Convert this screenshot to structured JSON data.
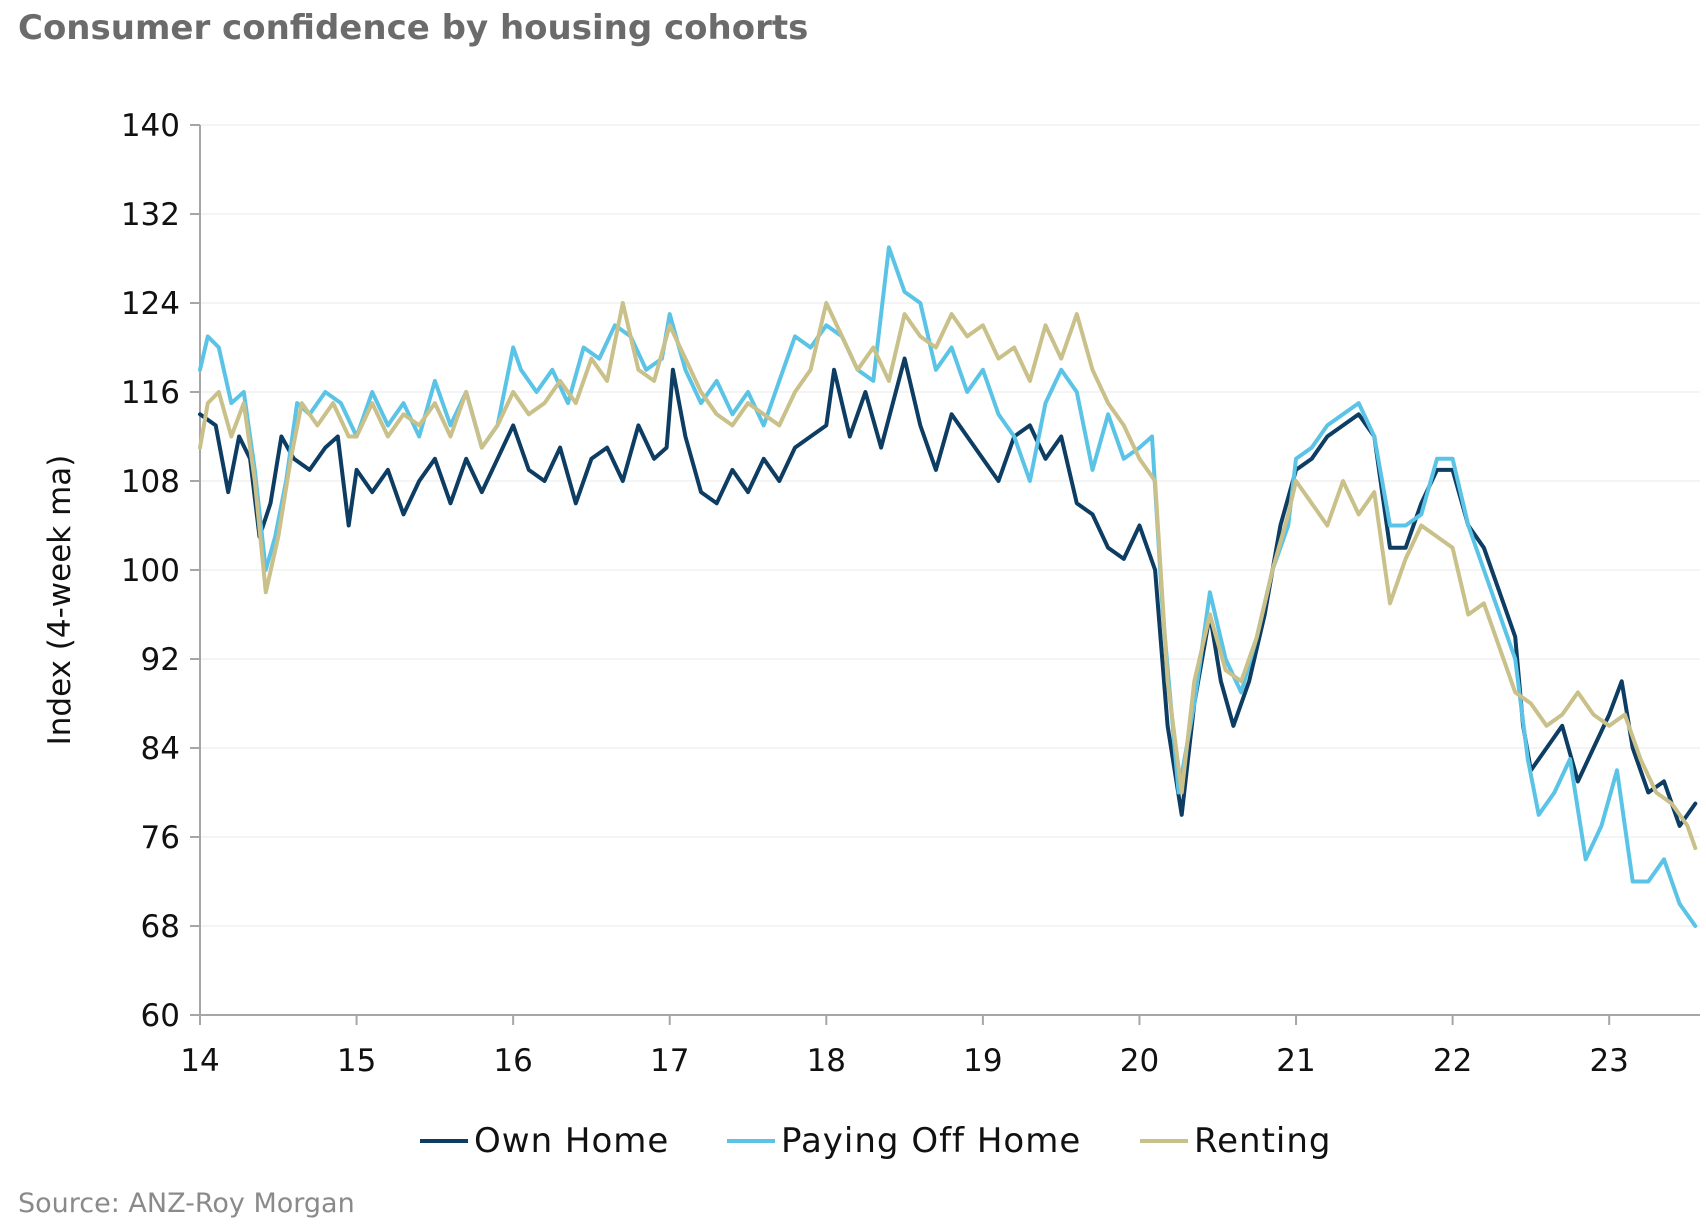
{
  "title": "Consumer confidence by housing cohorts",
  "source": "Source: ANZ-Roy Morgan",
  "colors": {
    "own_home": "#0d3d62",
    "paying_off_home": "#5bc4e6",
    "renting": "#c9c08a",
    "gridline": "#e8e8e8",
    "axis": "#a6a6a6"
  },
  "chart_data": {
    "type": "line",
    "title": "Consumer confidence by housing cohorts",
    "xlabel": "",
    "ylabel": "Index (4-week ma)",
    "xlim": [
      14,
      23.58
    ],
    "ylim": [
      60,
      140
    ],
    "x_ticks": [
      "14",
      "15",
      "16",
      "17",
      "18",
      "19",
      "20",
      "21",
      "22",
      "23"
    ],
    "y_ticks": [
      "60",
      "68",
      "76",
      "84",
      "92",
      "100",
      "108",
      "116",
      "124",
      "132",
      "140"
    ],
    "grid": "horizontal",
    "legend_position": "bottom",
    "series": [
      {
        "name": "Own Home",
        "color": "#0d3d62",
        "points": [
          [
            14.0,
            114
          ],
          [
            14.1,
            113
          ],
          [
            14.18,
            107
          ],
          [
            14.25,
            112
          ],
          [
            14.32,
            110
          ],
          [
            14.38,
            103
          ],
          [
            14.45,
            106
          ],
          [
            14.52,
            112
          ],
          [
            14.6,
            110
          ],
          [
            14.7,
            109
          ],
          [
            14.8,
            111
          ],
          [
            14.88,
            112
          ],
          [
            14.95,
            104
          ],
          [
            15.0,
            109
          ],
          [
            15.1,
            107
          ],
          [
            15.2,
            109
          ],
          [
            15.3,
            105
          ],
          [
            15.4,
            108
          ],
          [
            15.5,
            110
          ],
          [
            15.6,
            106
          ],
          [
            15.7,
            110
          ],
          [
            15.8,
            107
          ],
          [
            15.9,
            110
          ],
          [
            16.0,
            113
          ],
          [
            16.1,
            109
          ],
          [
            16.2,
            108
          ],
          [
            16.3,
            111
          ],
          [
            16.4,
            106
          ],
          [
            16.5,
            110
          ],
          [
            16.6,
            111
          ],
          [
            16.7,
            108
          ],
          [
            16.8,
            113
          ],
          [
            16.9,
            110
          ],
          [
            16.98,
            111
          ],
          [
            17.02,
            118
          ],
          [
            17.1,
            112
          ],
          [
            17.2,
            107
          ],
          [
            17.3,
            106
          ],
          [
            17.4,
            109
          ],
          [
            17.5,
            107
          ],
          [
            17.6,
            110
          ],
          [
            17.7,
            108
          ],
          [
            17.8,
            111
          ],
          [
            17.9,
            112
          ],
          [
            18.0,
            113
          ],
          [
            18.05,
            118
          ],
          [
            18.15,
            112
          ],
          [
            18.25,
            116
          ],
          [
            18.35,
            111
          ],
          [
            18.5,
            119
          ],
          [
            18.6,
            113
          ],
          [
            18.7,
            109
          ],
          [
            18.8,
            114
          ],
          [
            18.9,
            112
          ],
          [
            19.0,
            110
          ],
          [
            19.1,
            108
          ],
          [
            19.2,
            112
          ],
          [
            19.3,
            113
          ],
          [
            19.4,
            110
          ],
          [
            19.5,
            112
          ],
          [
            19.6,
            106
          ],
          [
            19.7,
            105
          ],
          [
            19.8,
            102
          ],
          [
            19.9,
            101
          ],
          [
            20.0,
            104
          ],
          [
            20.1,
            100
          ],
          [
            20.18,
            86
          ],
          [
            20.27,
            78
          ],
          [
            20.35,
            88
          ],
          [
            20.45,
            96
          ],
          [
            20.52,
            90
          ],
          [
            20.6,
            86
          ],
          [
            20.7,
            90
          ],
          [
            20.8,
            96
          ],
          [
            20.9,
            104
          ],
          [
            21.0,
            109
          ],
          [
            21.1,
            110
          ],
          [
            21.2,
            112
          ],
          [
            21.3,
            113
          ],
          [
            21.4,
            114
          ],
          [
            21.5,
            112
          ],
          [
            21.6,
            102
          ],
          [
            21.7,
            102
          ],
          [
            21.8,
            106
          ],
          [
            21.9,
            109
          ],
          [
            22.0,
            109
          ],
          [
            22.1,
            104
          ],
          [
            22.2,
            102
          ],
          [
            22.3,
            98
          ],
          [
            22.4,
            94
          ],
          [
            22.45,
            86
          ],
          [
            22.5,
            82
          ],
          [
            22.6,
            84
          ],
          [
            22.7,
            86
          ],
          [
            22.8,
            81
          ],
          [
            22.9,
            84
          ],
          [
            23.0,
            87
          ],
          [
            23.08,
            90
          ],
          [
            23.15,
            84
          ],
          [
            23.25,
            80
          ],
          [
            23.35,
            81
          ],
          [
            23.45,
            77
          ],
          [
            23.55,
            79
          ]
        ]
      },
      {
        "name": "Paying Off Home",
        "color": "#5bc4e6",
        "points": [
          [
            14.0,
            118
          ],
          [
            14.05,
            121
          ],
          [
            14.12,
            120
          ],
          [
            14.2,
            115
          ],
          [
            14.28,
            116
          ],
          [
            14.35,
            109
          ],
          [
            14.42,
            100
          ],
          [
            14.48,
            103
          ],
          [
            14.55,
            108
          ],
          [
            14.62,
            115
          ],
          [
            14.7,
            114
          ],
          [
            14.8,
            116
          ],
          [
            14.9,
            115
          ],
          [
            15.0,
            112
          ],
          [
            15.1,
            116
          ],
          [
            15.2,
            113
          ],
          [
            15.3,
            115
          ],
          [
            15.4,
            112
          ],
          [
            15.5,
            117
          ],
          [
            15.6,
            113
          ],
          [
            15.7,
            116
          ],
          [
            15.8,
            111
          ],
          [
            15.9,
            113
          ],
          [
            16.0,
            120
          ],
          [
            16.05,
            118
          ],
          [
            16.15,
            116
          ],
          [
            16.25,
            118
          ],
          [
            16.35,
            115
          ],
          [
            16.45,
            120
          ],
          [
            16.55,
            119
          ],
          [
            16.65,
            122
          ],
          [
            16.75,
            121
          ],
          [
            16.85,
            118
          ],
          [
            16.95,
            119
          ],
          [
            17.0,
            123
          ],
          [
            17.1,
            118
          ],
          [
            17.2,
            115
          ],
          [
            17.3,
            117
          ],
          [
            17.4,
            114
          ],
          [
            17.5,
            116
          ],
          [
            17.6,
            113
          ],
          [
            17.7,
            117
          ],
          [
            17.8,
            121
          ],
          [
            17.9,
            120
          ],
          [
            18.0,
            122
          ],
          [
            18.1,
            121
          ],
          [
            18.2,
            118
          ],
          [
            18.3,
            117
          ],
          [
            18.4,
            129
          ],
          [
            18.5,
            125
          ],
          [
            18.6,
            124
          ],
          [
            18.7,
            118
          ],
          [
            18.8,
            120
          ],
          [
            18.9,
            116
          ],
          [
            19.0,
            118
          ],
          [
            19.1,
            114
          ],
          [
            19.2,
            112
          ],
          [
            19.3,
            108
          ],
          [
            19.4,
            115
          ],
          [
            19.5,
            118
          ],
          [
            19.6,
            116
          ],
          [
            19.7,
            109
          ],
          [
            19.8,
            114
          ],
          [
            19.9,
            110
          ],
          [
            20.0,
            111
          ],
          [
            20.08,
            112
          ],
          [
            20.15,
            96
          ],
          [
            20.25,
            80
          ],
          [
            20.35,
            88
          ],
          [
            20.45,
            98
          ],
          [
            20.55,
            92
          ],
          [
            20.65,
            89
          ],
          [
            20.75,
            94
          ],
          [
            20.85,
            100
          ],
          [
            20.95,
            104
          ],
          [
            21.0,
            110
          ],
          [
            21.1,
            111
          ],
          [
            21.2,
            113
          ],
          [
            21.3,
            114
          ],
          [
            21.4,
            115
          ],
          [
            21.5,
            112
          ],
          [
            21.6,
            104
          ],
          [
            21.7,
            104
          ],
          [
            21.8,
            105
          ],
          [
            21.9,
            110
          ],
          [
            22.0,
            110
          ],
          [
            22.1,
            104
          ],
          [
            22.2,
            100
          ],
          [
            22.3,
            96
          ],
          [
            22.4,
            92
          ],
          [
            22.48,
            83
          ],
          [
            22.55,
            78
          ],
          [
            22.65,
            80
          ],
          [
            22.75,
            83
          ],
          [
            22.85,
            74
          ],
          [
            22.95,
            77
          ],
          [
            23.05,
            82
          ],
          [
            23.15,
            72
          ],
          [
            23.25,
            72
          ],
          [
            23.35,
            74
          ],
          [
            23.45,
            70
          ],
          [
            23.55,
            68
          ]
        ]
      },
      {
        "name": "Renting",
        "color": "#c9c08a",
        "points": [
          [
            14.0,
            111
          ],
          [
            14.05,
            115
          ],
          [
            14.12,
            116
          ],
          [
            14.2,
            112
          ],
          [
            14.28,
            115
          ],
          [
            14.35,
            108
          ],
          [
            14.42,
            98
          ],
          [
            14.5,
            103
          ],
          [
            14.58,
            110
          ],
          [
            14.65,
            115
          ],
          [
            14.75,
            113
          ],
          [
            14.85,
            115
          ],
          [
            14.95,
            112
          ],
          [
            15.0,
            112
          ],
          [
            15.1,
            115
          ],
          [
            15.2,
            112
          ],
          [
            15.3,
            114
          ],
          [
            15.4,
            113
          ],
          [
            15.5,
            115
          ],
          [
            15.6,
            112
          ],
          [
            15.7,
            116
          ],
          [
            15.8,
            111
          ],
          [
            15.9,
            113
          ],
          [
            16.0,
            116
          ],
          [
            16.1,
            114
          ],
          [
            16.2,
            115
          ],
          [
            16.3,
            117
          ],
          [
            16.4,
            115
          ],
          [
            16.5,
            119
          ],
          [
            16.6,
            117
          ],
          [
            16.7,
            124
          ],
          [
            16.8,
            118
          ],
          [
            16.9,
            117
          ],
          [
            17.0,
            122
          ],
          [
            17.1,
            119
          ],
          [
            17.2,
            116
          ],
          [
            17.3,
            114
          ],
          [
            17.4,
            113
          ],
          [
            17.5,
            115
          ],
          [
            17.6,
            114
          ],
          [
            17.7,
            113
          ],
          [
            17.8,
            116
          ],
          [
            17.9,
            118
          ],
          [
            18.0,
            124
          ],
          [
            18.1,
            121
          ],
          [
            18.2,
            118
          ],
          [
            18.3,
            120
          ],
          [
            18.4,
            117
          ],
          [
            18.5,
            123
          ],
          [
            18.6,
            121
          ],
          [
            18.7,
            120
          ],
          [
            18.8,
            123
          ],
          [
            18.9,
            121
          ],
          [
            19.0,
            122
          ],
          [
            19.1,
            119
          ],
          [
            19.2,
            120
          ],
          [
            19.3,
            117
          ],
          [
            19.4,
            122
          ],
          [
            19.5,
            119
          ],
          [
            19.6,
            123
          ],
          [
            19.7,
            118
          ],
          [
            19.8,
            115
          ],
          [
            19.9,
            113
          ],
          [
            20.0,
            110
          ],
          [
            20.1,
            108
          ],
          [
            20.18,
            90
          ],
          [
            20.27,
            80
          ],
          [
            20.35,
            90
          ],
          [
            20.45,
            96
          ],
          [
            20.55,
            91
          ],
          [
            20.65,
            90
          ],
          [
            20.75,
            94
          ],
          [
            20.85,
            100
          ],
          [
            20.95,
            105
          ],
          [
            21.0,
            108
          ],
          [
            21.1,
            106
          ],
          [
            21.2,
            104
          ],
          [
            21.3,
            108
          ],
          [
            21.4,
            105
          ],
          [
            21.5,
            107
          ],
          [
            21.6,
            97
          ],
          [
            21.7,
            101
          ],
          [
            21.8,
            104
          ],
          [
            21.9,
            103
          ],
          [
            22.0,
            102
          ],
          [
            22.1,
            96
          ],
          [
            22.2,
            97
          ],
          [
            22.3,
            93
          ],
          [
            22.4,
            89
          ],
          [
            22.5,
            88
          ],
          [
            22.6,
            86
          ],
          [
            22.7,
            87
          ],
          [
            22.8,
            89
          ],
          [
            22.9,
            87
          ],
          [
            23.0,
            86
          ],
          [
            23.1,
            87
          ],
          [
            23.2,
            83
          ],
          [
            23.3,
            80
          ],
          [
            23.4,
            79
          ],
          [
            23.5,
            77
          ],
          [
            23.55,
            75
          ]
        ]
      }
    ]
  }
}
